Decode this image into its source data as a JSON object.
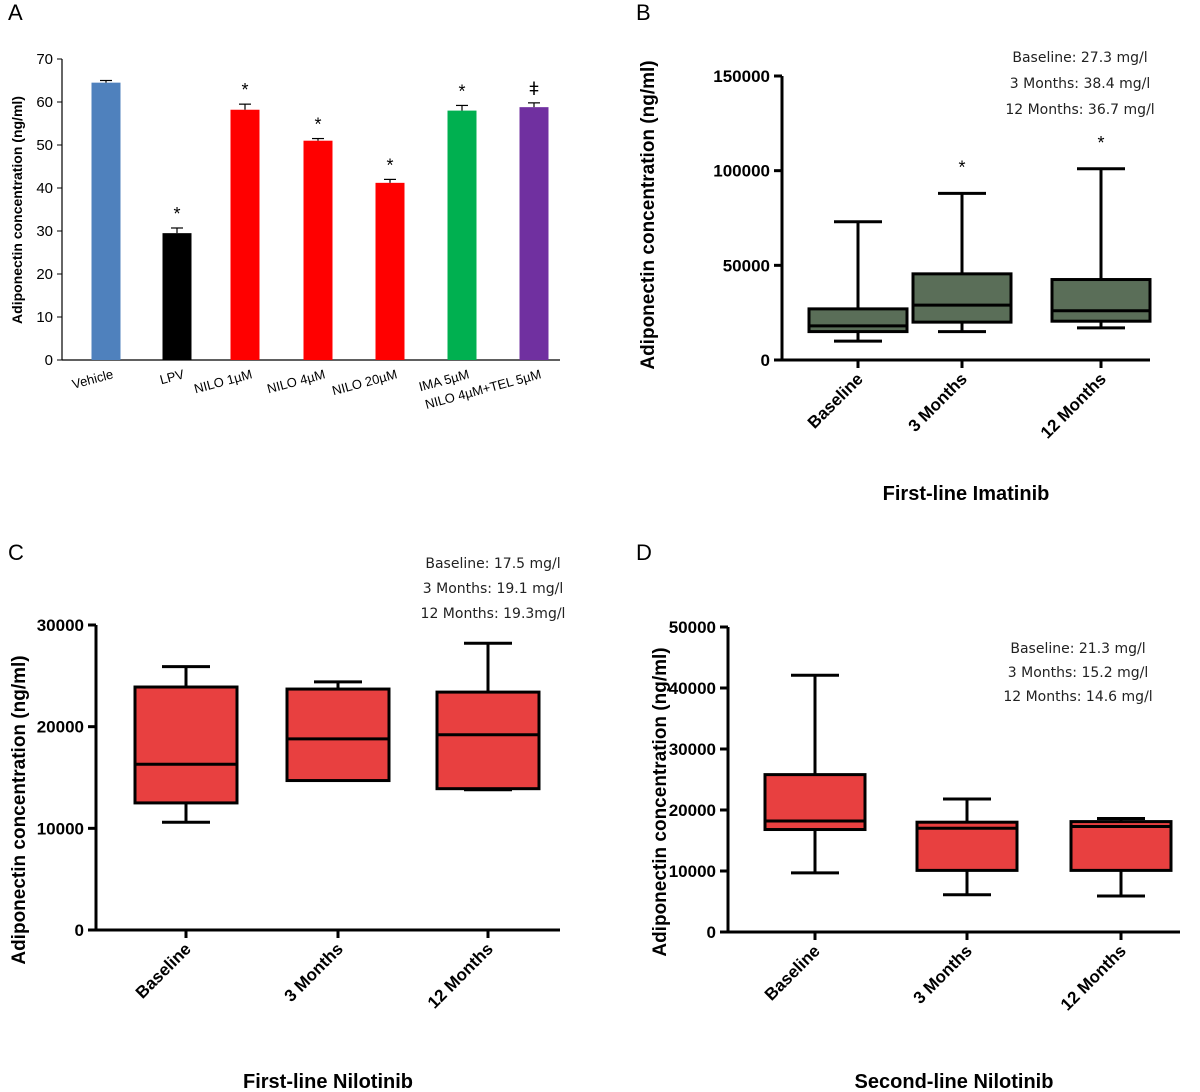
{
  "chart_data": [
    {
      "panel": "A",
      "type": "bar",
      "title": "",
      "xlabel": "",
      "ylabel": "Adiponectin concentration (ng/ml)",
      "ylim": [
        0,
        70
      ],
      "yticks": [
        0,
        10,
        20,
        30,
        40,
        50,
        60,
        70
      ],
      "categories": [
        "Vehicle",
        "LPV",
        "NILO 1µM",
        "NILO 4µM",
        "NILO 20µM",
        "IMA 5µM",
        "NILO 4µM+TEL 5µM"
      ],
      "values": [
        64.5,
        29.5,
        58.2,
        51.0,
        41.2,
        58.0,
        58.8
      ],
      "errors": [
        0.5,
        1.2,
        1.3,
        0.5,
        0.8,
        1.2,
        1.0
      ],
      "colors": [
        "#4F81BD",
        "#000000",
        "#FF0000",
        "#FF0000",
        "#FF0000",
        "#00B050",
        "#7030A0"
      ],
      "markers": [
        "",
        "*",
        "*",
        "*",
        "*",
        "*",
        "ǂ"
      ]
    },
    {
      "panel": "B",
      "type": "box",
      "xlabel": "First-line Imatinib",
      "ylabel": "Adiponectin concentration (ng/ml)",
      "ylim": [
        0,
        150000
      ],
      "yticks": [
        0,
        50000,
        100000,
        150000
      ],
      "categories": [
        "Baseline",
        "3 Months",
        "12 Months"
      ],
      "boxes": [
        {
          "min": 10000,
          "q1": 15000,
          "median": 18000,
          "q3": 27000,
          "max": 73000
        },
        {
          "min": 15000,
          "q1": 20000,
          "median": 29000,
          "q3": 45500,
          "max": 88000
        },
        {
          "min": 17000,
          "q1": 20500,
          "median": 26000,
          "q3": 42500,
          "max": 101000
        }
      ],
      "box_color": "#5A6E58",
      "markers": [
        "",
        "*",
        "*"
      ],
      "annotations": [
        "Baseline: 27.3 mg/l",
        "3 Months: 38.4 mg/l",
        "12 Months: 36.7 mg/l"
      ]
    },
    {
      "panel": "C",
      "type": "box",
      "xlabel": "First-line Nilotinib",
      "ylabel": "Adiponectin concentration (ng/ml)",
      "ylim": [
        0,
        30000
      ],
      "yticks": [
        0,
        10000,
        20000,
        30000
      ],
      "categories": [
        "Baseline",
        "3 Months",
        "12 Months"
      ],
      "boxes": [
        {
          "min": 10600,
          "q1": 12500,
          "median": 16300,
          "q3": 23900,
          "max": 25900
        },
        {
          "min": 14700,
          "q1": 14700,
          "median": 18800,
          "q3": 23700,
          "max": 24400
        },
        {
          "min": 13800,
          "q1": 13900,
          "median": 19200,
          "q3": 23400,
          "max": 28200
        }
      ],
      "box_color": "#E84040",
      "markers": [
        "",
        "",
        ""
      ],
      "annotations": [
        "Baseline: 17.5 mg/l",
        "3 Months: 19.1 mg/l",
        "12 Months: 19.3mg/l"
      ]
    },
    {
      "panel": "D",
      "type": "box",
      "xlabel": "Second-line Nilotinib",
      "ylabel": "Adiponectin concentration (ng/ml)",
      "ylim": [
        0,
        50000
      ],
      "yticks": [
        0,
        10000,
        20000,
        30000,
        40000,
        50000
      ],
      "categories": [
        "Baseline",
        "3 Months",
        "12 Months"
      ],
      "boxes": [
        {
          "min": 9700,
          "q1": 16800,
          "median": 18200,
          "q3": 25800,
          "max": 42100
        },
        {
          "min": 6100,
          "q1": 10100,
          "median": 17000,
          "q3": 18000,
          "max": 21800
        },
        {
          "min": 5900,
          "q1": 10100,
          "median": 17300,
          "q3": 18100,
          "max": 18600
        }
      ],
      "box_color": "#E84040",
      "markers": [
        "",
        "",
        ""
      ],
      "annotations": [
        "Baseline: 21.3 mg/l",
        "3 Months: 15.2 mg/l",
        "12 Months: 14.6 mg/l"
      ]
    }
  ]
}
